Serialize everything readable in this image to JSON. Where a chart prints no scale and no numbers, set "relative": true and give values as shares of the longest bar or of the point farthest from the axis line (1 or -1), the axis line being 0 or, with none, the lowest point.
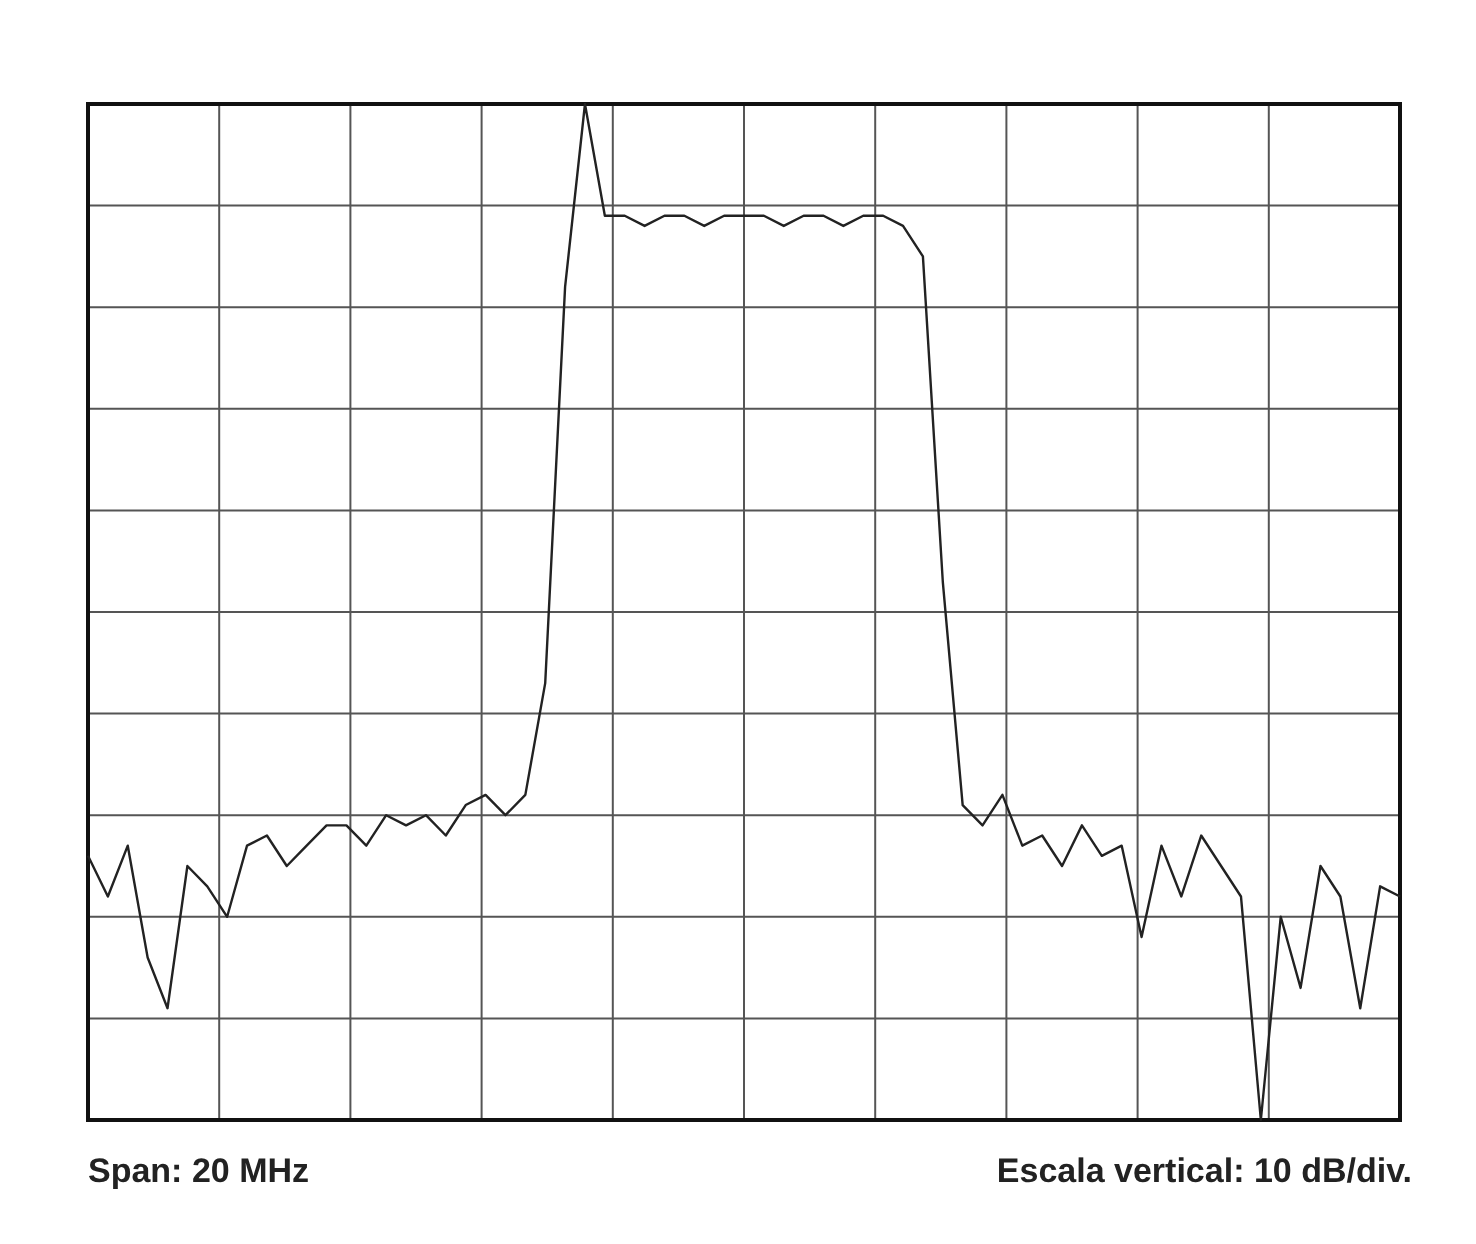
{
  "chart_data": {
    "type": "line",
    "relative": true,
    "grid": true,
    "marker": "none",
    "line_style": "solid",
    "annotations": [
      "Span: 20 MHz",
      "Escala vertical: 10 dB/div."
    ],
    "categories": [
      null,
      null,
      null,
      null,
      null,
      null,
      null,
      null,
      null,
      null,
      null,
      null,
      null,
      null,
      null,
      null,
      null,
      null,
      null,
      null,
      null,
      null,
      null,
      null,
      null,
      null,
      null,
      null,
      null,
      null,
      null,
      null,
      null,
      null,
      null,
      null,
      null,
      null,
      null,
      null,
      null,
      null,
      null,
      null,
      null,
      null,
      null,
      null,
      null,
      null,
      null,
      null,
      null,
      null,
      null,
      null,
      null,
      null,
      null,
      null,
      null,
      null,
      null,
      null,
      null,
      null,
      null
    ],
    "series": [
      {
        "color": "#222222",
        "values": [
          0.26,
          0.22,
          0.27,
          0.16,
          0.11,
          0.25,
          0.23,
          0.2,
          0.27,
          0.28,
          0.25,
          0.27,
          0.29,
          0.29,
          0.27,
          0.3,
          0.29,
          0.3,
          0.28,
          0.31,
          0.32,
          0.3,
          0.32,
          0.43,
          0.82,
          1,
          0.89,
          0.89,
          0.88,
          0.89,
          0.89,
          0.88,
          0.89,
          0.89,
          0.89,
          0.88,
          0.89,
          0.89,
          0.88,
          0.89,
          0.89,
          0.88,
          0.85,
          0.53,
          0.31,
          0.29,
          0.32,
          0.27,
          0.28,
          0.25,
          0.29,
          0.26,
          0.27,
          0.18,
          0.27,
          0.22,
          0.28,
          0.25,
          0.22,
          0,
          0.2,
          0.13,
          0.25,
          0.22,
          0.11,
          0.23,
          0.22
        ]
      }
    ]
  }
}
